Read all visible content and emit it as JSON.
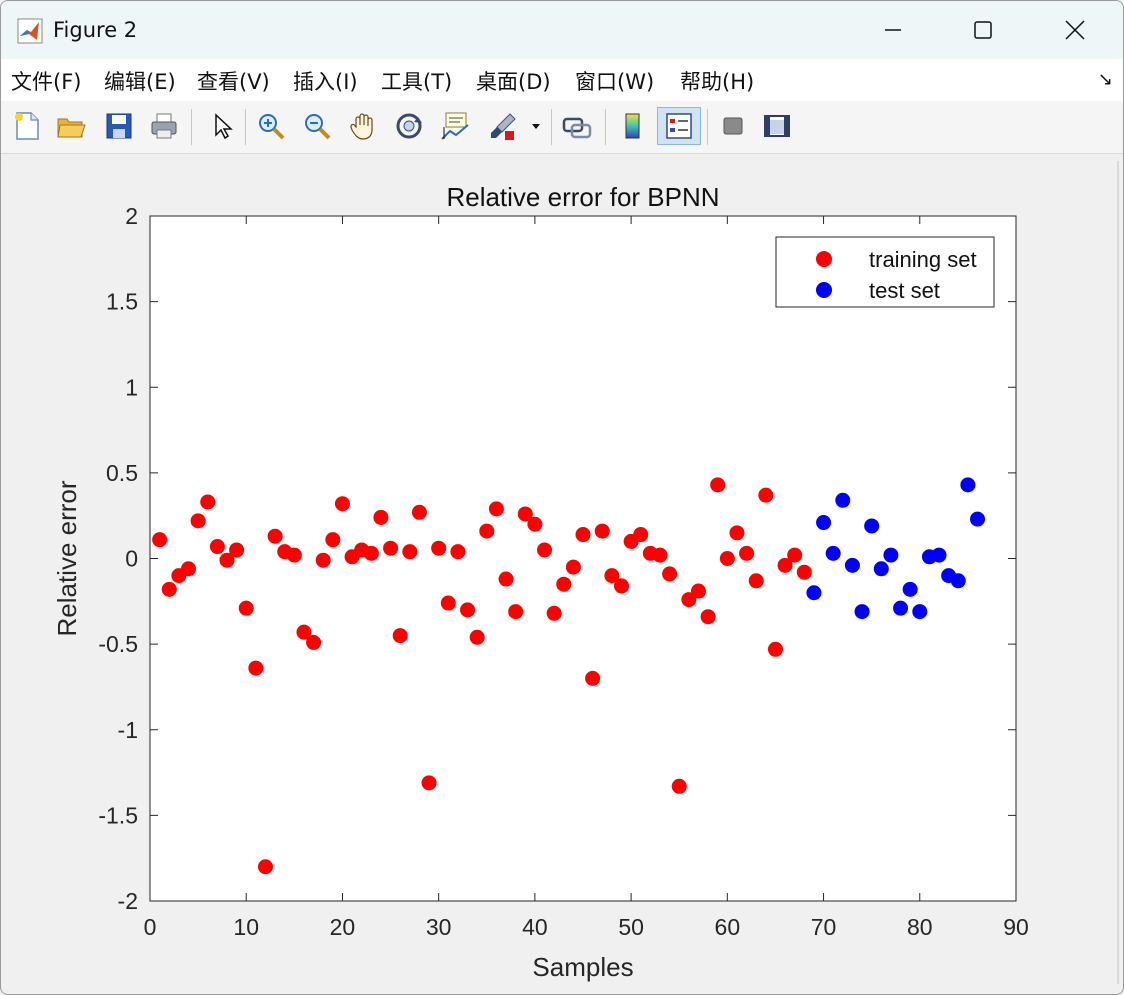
{
  "window": {
    "title": "Figure 2",
    "minimize_icon": "minimize-icon",
    "maximize_icon": "maximize-icon",
    "close_icon": "close-icon"
  },
  "menu": {
    "items": [
      "文件(F)",
      "编辑(E)",
      "查看(V)",
      "插入(I)",
      "工具(T)",
      "桌面(D)",
      "窗口(W)",
      "帮助(H)"
    ],
    "dock_icon": "dock-arrow-icon"
  },
  "toolbar": {
    "tools": [
      "new-figure-icon",
      "open-file-icon",
      "save-icon",
      "print-icon",
      "edit-plot-icon",
      "zoom-in-icon",
      "zoom-out-icon",
      "pan-icon",
      "rotate-3d-icon",
      "data-cursor-icon",
      "brush-icon",
      "link-plot-icon",
      "colorbar-icon",
      "legend-icon",
      "hide-plot-tools-icon",
      "show-plot-tools-icon"
    ],
    "active_tool": "legend-icon"
  },
  "chart_data": {
    "type": "scatter",
    "title": "Relative error for BPNN",
    "xlabel": "Samples",
    "ylabel": "Relative error",
    "xlim": [
      0,
      90
    ],
    "ylim": [
      -2,
      2
    ],
    "xticks": [
      "0",
      "10",
      "20",
      "30",
      "40",
      "50",
      "60",
      "70",
      "80",
      "90"
    ],
    "yticks": [
      "2",
      "1.5",
      "1",
      "0.5",
      "0",
      "-0.5",
      "-1",
      "-1.5",
      "-2"
    ],
    "grid": false,
    "legend_position": "top-right",
    "series": [
      {
        "name": "training set",
        "color": "#ff0000",
        "x": [
          1,
          2,
          3,
          4,
          5,
          6,
          7,
          8,
          9,
          10,
          11,
          12,
          13,
          14,
          15,
          16,
          17,
          18,
          19,
          20,
          21,
          22,
          23,
          24,
          25,
          26,
          27,
          28,
          29,
          30,
          31,
          32,
          33,
          34,
          35,
          36,
          37,
          38,
          39,
          40,
          41,
          42,
          43,
          44,
          45,
          46,
          47,
          48,
          49,
          50,
          51,
          52,
          53,
          54,
          55,
          56,
          57,
          58,
          59,
          60,
          61,
          62,
          63,
          64,
          65,
          66,
          67,
          68
        ],
        "y": [
          0.11,
          -0.18,
          -0.1,
          -0.06,
          0.22,
          0.33,
          0.07,
          -0.01,
          0.05,
          -0.29,
          -0.64,
          -1.8,
          0.13,
          0.04,
          0.02,
          -0.43,
          -0.49,
          -0.01,
          0.11,
          0.32,
          0.01,
          0.05,
          0.03,
          0.24,
          0.06,
          -0.45,
          0.04,
          0.27,
          -1.31,
          0.06,
          -0.26,
          0.04,
          -0.3,
          -0.46,
          0.16,
          0.29,
          -0.12,
          -0.31,
          0.26,
          0.2,
          0.05,
          -0.32,
          -0.15,
          -0.05,
          0.14,
          -0.7,
          0.16,
          -0.1,
          -0.16,
          0.1,
          0.14,
          0.03,
          0.02,
          -0.09,
          -1.33,
          -0.24,
          -0.19,
          -0.34,
          0.43,
          0.0,
          0.15,
          0.03,
          -0.13,
          0.37,
          -0.53,
          -0.04,
          0.02,
          -0.08
        ]
      },
      {
        "name": "test set",
        "color": "#0000ff",
        "x": [
          69,
          70,
          71,
          72,
          73,
          74,
          75,
          76,
          77,
          78,
          79,
          80,
          81,
          82,
          83,
          84,
          85,
          86
        ],
        "y": [
          -0.2,
          0.21,
          0.03,
          0.34,
          -0.04,
          -0.31,
          0.19,
          -0.06,
          0.02,
          -0.29,
          -0.18,
          -0.31,
          0.01,
          0.02,
          -0.1,
          -0.13,
          0.43,
          0.23
        ]
      }
    ]
  }
}
